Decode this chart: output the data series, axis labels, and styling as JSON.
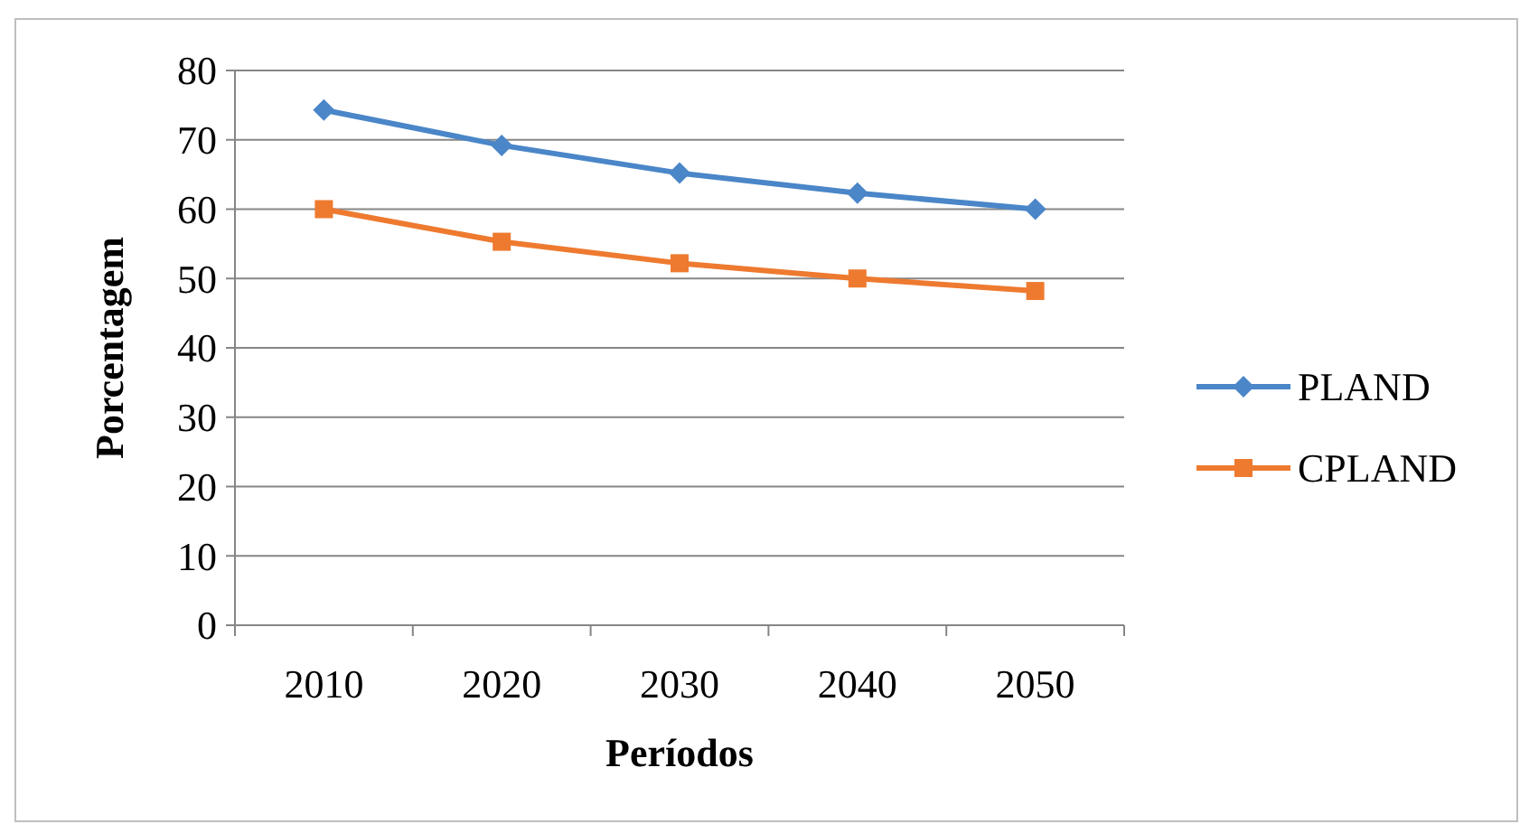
{
  "chart_data": {
    "type": "line",
    "xlabel": "Períodos",
    "ylabel": "Porcentagem",
    "categories": [
      "2010",
      "2020",
      "2030",
      "2040",
      "2050"
    ],
    "series": [
      {
        "name": "PLAND",
        "color": "#4a86c8",
        "marker": "diamond",
        "values": [
          74.3,
          69.2,
          65.2,
          62.3,
          60
        ]
      },
      {
        "name": "CPLAND",
        "color": "#ee7a30",
        "marker": "square",
        "values": [
          60,
          55.3,
          52.2,
          50,
          48.2
        ]
      }
    ],
    "ylim": [
      0,
      80
    ],
    "yticks": [
      0,
      10,
      20,
      30,
      40,
      50,
      60,
      70,
      80
    ],
    "grid": "y",
    "legend": "right",
    "line_style": "solid"
  }
}
